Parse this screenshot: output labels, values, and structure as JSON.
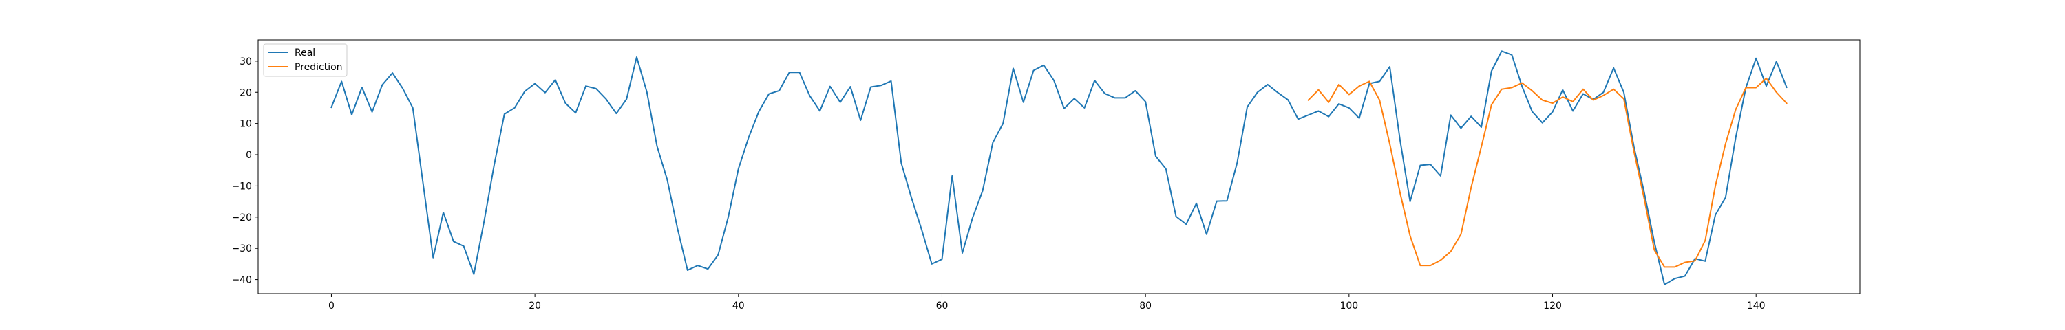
{
  "chart_data": {
    "type": "line",
    "title": "",
    "xlabel": "",
    "ylabel": "",
    "xlim": [
      -7.2,
      150.2
    ],
    "ylim": [
      -44.5,
      36.8
    ],
    "xticks": [
      0,
      20,
      40,
      60,
      80,
      100,
      120,
      140
    ],
    "yticks": [
      -40,
      -30,
      -20,
      -10,
      0,
      10,
      20,
      30
    ],
    "grid": false,
    "legend_position": "top-left",
    "series": [
      {
        "name": "Real",
        "color": "#1f77b4",
        "x_start": 0,
        "values": [
          15.2,
          23.5,
          12.8,
          21.6,
          13.7,
          22.4,
          26.2,
          21.3,
          15.0,
          -9.0,
          -33.0,
          -18.5,
          -27.8,
          -29.3,
          -38.3,
          -21.5,
          -3.2,
          13.0,
          15.0,
          20.3,
          22.8,
          19.9,
          24.0,
          16.5,
          13.4,
          22.0,
          21.2,
          17.8,
          13.2,
          17.8,
          31.3,
          20.1,
          2.7,
          -8.0,
          -23.5,
          -37.0,
          -35.5,
          -36.6,
          -32.1,
          -20.0,
          -4.5,
          5.5,
          13.8,
          19.5,
          20.5,
          26.4,
          26.4,
          18.9,
          14.0,
          21.9,
          16.8,
          21.8,
          11.0,
          21.7,
          22.2,
          23.6,
          -2.7,
          -13.8,
          -24.0,
          -35.0,
          -33.5,
          -6.8,
          -31.5,
          -20.3,
          -11.5,
          3.9,
          10.0,
          27.7,
          16.8,
          27.0,
          28.7,
          23.8,
          14.8,
          18.0,
          15.0,
          23.8,
          19.6,
          18.2,
          18.2,
          20.5,
          17.0,
          -0.5,
          -4.5,
          -19.8,
          -22.3,
          -15.6,
          -25.5,
          -14.9,
          -14.8,
          -2.7,
          15.3,
          20.0,
          22.5,
          19.9,
          17.6,
          11.4,
          12.7,
          14.0,
          12.2,
          16.3,
          15.0,
          11.7,
          22.8,
          23.5,
          28.2,
          5.0,
          -15.0,
          -3.4,
          -3.1,
          -6.8,
          12.7,
          8.5,
          12.3,
          8.8,
          26.8,
          33.2,
          32.0,
          21.9,
          13.8,
          10.2,
          13.7,
          20.8,
          14.0,
          19.5,
          17.7,
          20.0,
          27.8,
          20.0,
          2.5,
          -12.0,
          -28.0,
          -41.6,
          -39.7,
          -38.9,
          -33.3,
          -34.1,
          -19.3,
          -13.7,
          5.5,
          21.5,
          30.9,
          22.0,
          29.9,
          21.6
        ]
      },
      {
        "name": "Prediction",
        "color": "#ff7f0e",
        "x_start": 96,
        "values": [
          17.5,
          20.8,
          16.8,
          22.5,
          19.3,
          22.0,
          23.5,
          17.5,
          3.5,
          -12.0,
          -26.0,
          -35.5,
          -35.5,
          -33.8,
          -31.0,
          -25.5,
          -10.5,
          2.5,
          16.0,
          21.0,
          21.5,
          23.0,
          20.5,
          17.5,
          16.5,
          18.5,
          17.0,
          21.0,
          17.5,
          19.0,
          21.0,
          17.9,
          1.0,
          -14.0,
          -30.5,
          -36.0,
          -36.0,
          -34.5,
          -34.0,
          -27.5,
          -10.0,
          3.5,
          14.5,
          21.5,
          21.5,
          24.5,
          20.0,
          16.5
        ]
      }
    ]
  }
}
